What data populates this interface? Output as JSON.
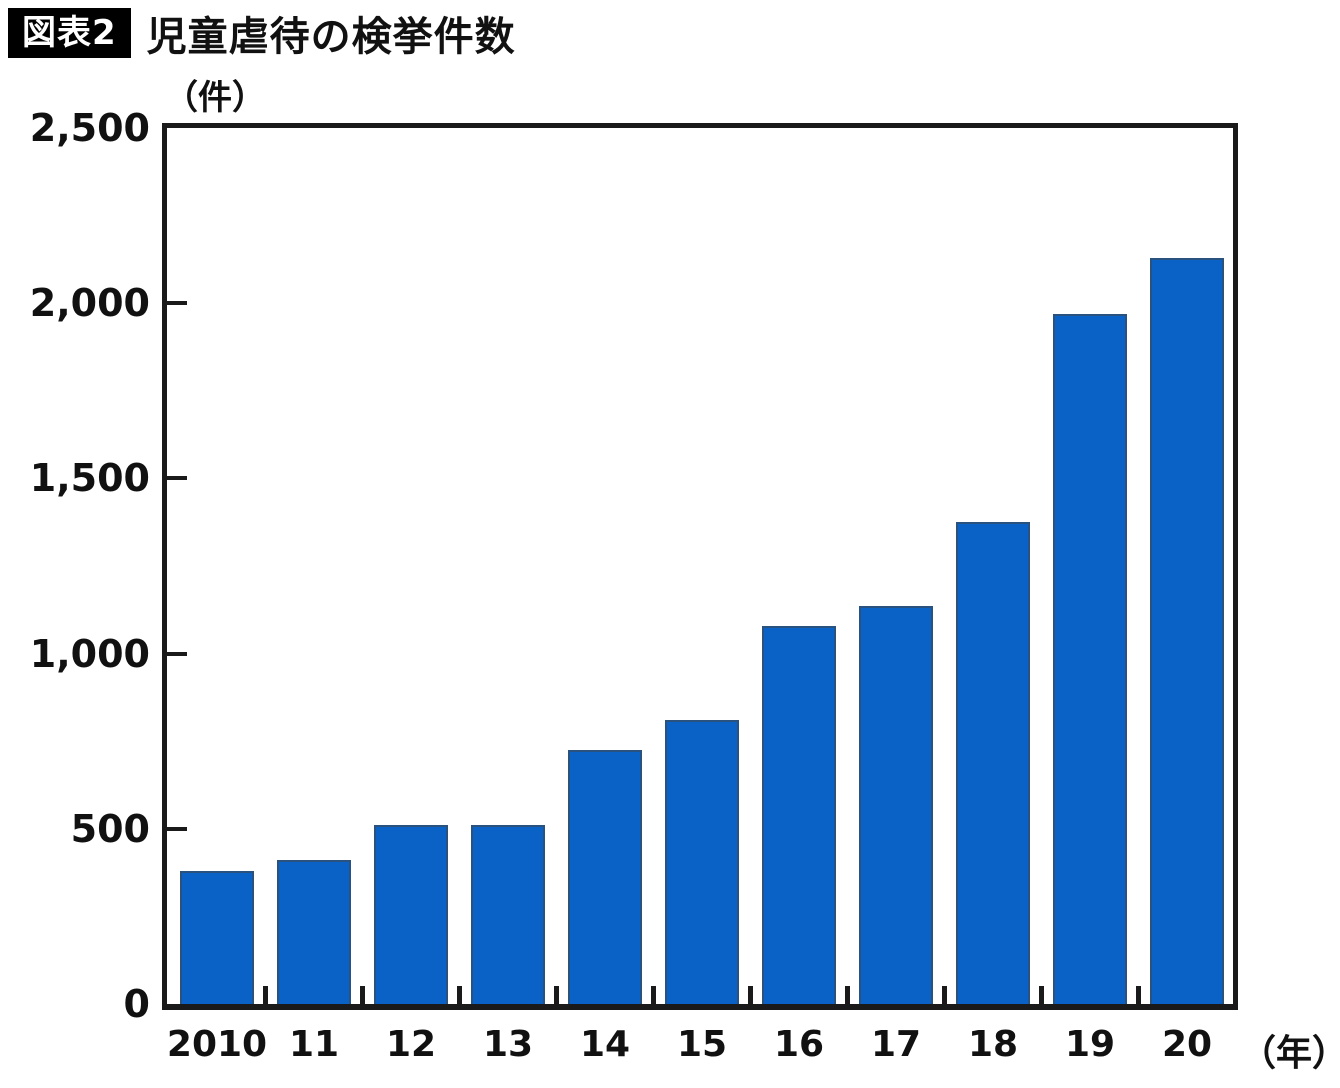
{
  "figure": {
    "badge": "図表2",
    "title": "児童虐待の検挙件数"
  },
  "chart_data": {
    "type": "bar",
    "title": "児童虐待の検挙件数",
    "y_unit_label": "（件）",
    "x_unit_label": "（年）",
    "xlabel": "",
    "ylabel": "件数",
    "categories": [
      "2010",
      "11",
      "12",
      "13",
      "14",
      "15",
      "16",
      "17",
      "18",
      "19",
      "20"
    ],
    "values": [
      380,
      410,
      510,
      510,
      725,
      810,
      1080,
      1135,
      1375,
      1970,
      2130
    ],
    "ylim": [
      0,
      2500
    ],
    "ytick_interval": 500,
    "ytick_labels": [
      "0",
      "500",
      "1,000",
      "1,500",
      "2,000",
      "2,500"
    ],
    "bar_color": "#0b62c6",
    "frame_color": "#1a1a1a",
    "grid": false,
    "legend": "none"
  }
}
